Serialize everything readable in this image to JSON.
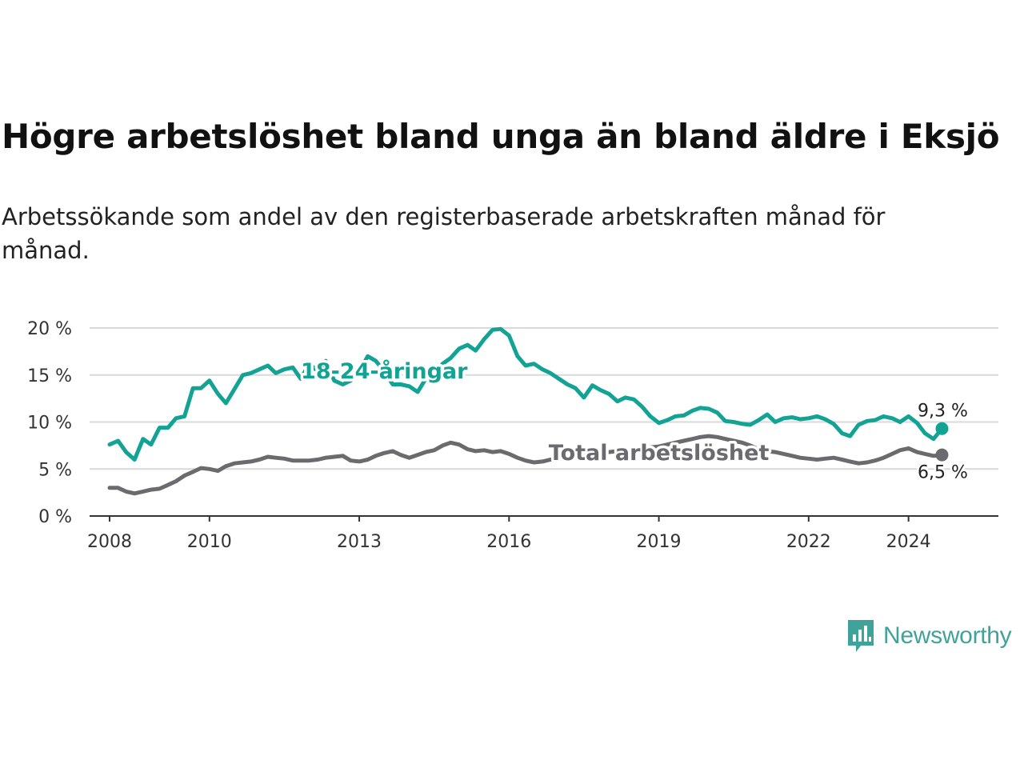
{
  "title": "Högre arbetslöshet bland unga än bland äldre i Eksjö",
  "subtitle": "Arbetssökande som andel av den registerbaserade arbetskraften månad för månad.",
  "brand": {
    "name": "Newsworthy",
    "icon": "newsworthy-logo-icon",
    "color": "#3fa39a"
  },
  "chart_data": {
    "type": "line",
    "title": "Högre arbetslöshet bland unga än bland äldre i Eksjö",
    "subtitle": "Arbetssökande som andel av den registerbaserade arbetskraften månad för månad.",
    "xlabel": "",
    "ylabel": "",
    "xlim": [
      2007.6,
      2025.8
    ],
    "ylim": [
      0,
      20
    ],
    "grid": true,
    "x_ticks": [
      2008,
      2010,
      2013,
      2016,
      2019,
      2022,
      2024
    ],
    "x_tick_labels": [
      "2008",
      "2010",
      "2013",
      "2016",
      "2019",
      "2022",
      "2024"
    ],
    "y_ticks": [
      0,
      5,
      10,
      15,
      20
    ],
    "y_tick_labels": [
      "0 %",
      "5 %",
      "10 %",
      "15 %",
      "20 %"
    ],
    "series": [
      {
        "name": "18-24-åringar",
        "color": "#12a394",
        "end_label": "9,3 %",
        "points": [
          [
            2008.0,
            7.6
          ],
          [
            2008.17,
            8.0
          ],
          [
            2008.33,
            6.8
          ],
          [
            2008.5,
            6.0
          ],
          [
            2008.67,
            8.2
          ],
          [
            2008.83,
            7.6
          ],
          [
            2009.0,
            9.4
          ],
          [
            2009.17,
            9.4
          ],
          [
            2009.33,
            10.4
          ],
          [
            2009.5,
            10.6
          ],
          [
            2009.67,
            13.6
          ],
          [
            2009.83,
            13.6
          ],
          [
            2010.0,
            14.4
          ],
          [
            2010.17,
            13.0
          ],
          [
            2010.33,
            12.0
          ],
          [
            2010.5,
            13.5
          ],
          [
            2010.67,
            15.0
          ],
          [
            2010.83,
            15.2
          ],
          [
            2011.0,
            15.6
          ],
          [
            2011.17,
            16.0
          ],
          [
            2011.33,
            15.2
          ],
          [
            2011.5,
            15.6
          ],
          [
            2011.67,
            15.8
          ],
          [
            2011.83,
            14.6
          ],
          [
            2012.0,
            16.2
          ],
          [
            2012.17,
            15.4
          ],
          [
            2012.33,
            16.5
          ],
          [
            2012.5,
            14.4
          ],
          [
            2012.67,
            14.0
          ],
          [
            2012.83,
            14.4
          ],
          [
            2013.0,
            15.4
          ],
          [
            2013.17,
            17.0
          ],
          [
            2013.33,
            16.5
          ],
          [
            2013.5,
            15.4
          ],
          [
            2013.67,
            14.0
          ],
          [
            2013.83,
            14.0
          ],
          [
            2014.0,
            13.8
          ],
          [
            2014.17,
            13.2
          ],
          [
            2014.33,
            14.6
          ],
          [
            2014.5,
            15.0
          ],
          [
            2014.67,
            16.2
          ],
          [
            2014.83,
            16.8
          ],
          [
            2015.0,
            17.8
          ],
          [
            2015.17,
            18.2
          ],
          [
            2015.33,
            17.6
          ],
          [
            2015.5,
            18.8
          ],
          [
            2015.67,
            19.8
          ],
          [
            2015.83,
            19.9
          ],
          [
            2016.0,
            19.2
          ],
          [
            2016.17,
            17.0
          ],
          [
            2016.33,
            16.0
          ],
          [
            2016.5,
            16.2
          ],
          [
            2016.67,
            15.6
          ],
          [
            2016.83,
            15.2
          ],
          [
            2017.0,
            14.6
          ],
          [
            2017.17,
            14.0
          ],
          [
            2017.33,
            13.6
          ],
          [
            2017.5,
            12.6
          ],
          [
            2017.67,
            13.9
          ],
          [
            2017.83,
            13.4
          ],
          [
            2018.0,
            13.0
          ],
          [
            2018.17,
            12.2
          ],
          [
            2018.33,
            12.6
          ],
          [
            2018.5,
            12.4
          ],
          [
            2018.67,
            11.6
          ],
          [
            2018.83,
            10.6
          ],
          [
            2019.0,
            9.9
          ],
          [
            2019.17,
            10.2
          ],
          [
            2019.33,
            10.6
          ],
          [
            2019.5,
            10.7
          ],
          [
            2019.67,
            11.2
          ],
          [
            2019.83,
            11.5
          ],
          [
            2020.0,
            11.4
          ],
          [
            2020.17,
            11.0
          ],
          [
            2020.33,
            10.1
          ],
          [
            2020.5,
            10.0
          ],
          [
            2020.67,
            9.8
          ],
          [
            2020.83,
            9.7
          ],
          [
            2021.0,
            10.2
          ],
          [
            2021.17,
            10.8
          ],
          [
            2021.33,
            10.0
          ],
          [
            2021.5,
            10.4
          ],
          [
            2021.67,
            10.5
          ],
          [
            2021.83,
            10.3
          ],
          [
            2022.0,
            10.4
          ],
          [
            2022.17,
            10.6
          ],
          [
            2022.33,
            10.3
          ],
          [
            2022.5,
            9.8
          ],
          [
            2022.67,
            8.8
          ],
          [
            2022.83,
            8.5
          ],
          [
            2023.0,
            9.7
          ],
          [
            2023.17,
            10.1
          ],
          [
            2023.33,
            10.2
          ],
          [
            2023.5,
            10.6
          ],
          [
            2023.67,
            10.4
          ],
          [
            2023.83,
            10.0
          ],
          [
            2024.0,
            10.6
          ],
          [
            2024.17,
            9.9
          ],
          [
            2024.33,
            8.8
          ],
          [
            2024.5,
            8.2
          ],
          [
            2024.67,
            9.3
          ]
        ]
      },
      {
        "name": "Total arbetslöshet",
        "color": "#6b6a6e",
        "end_label": "6,5 %",
        "points": [
          [
            2008.0,
            3.0
          ],
          [
            2008.17,
            3.0
          ],
          [
            2008.33,
            2.6
          ],
          [
            2008.5,
            2.4
          ],
          [
            2008.67,
            2.6
          ],
          [
            2008.83,
            2.8
          ],
          [
            2009.0,
            2.9
          ],
          [
            2009.17,
            3.3
          ],
          [
            2009.33,
            3.7
          ],
          [
            2009.5,
            4.3
          ],
          [
            2009.67,
            4.7
          ],
          [
            2009.83,
            5.1
          ],
          [
            2010.0,
            5.0
          ],
          [
            2010.17,
            4.8
          ],
          [
            2010.33,
            5.3
          ],
          [
            2010.5,
            5.6
          ],
          [
            2010.67,
            5.7
          ],
          [
            2010.83,
            5.8
          ],
          [
            2011.0,
            6.0
          ],
          [
            2011.17,
            6.3
          ],
          [
            2011.33,
            6.2
          ],
          [
            2011.5,
            6.1
          ],
          [
            2011.67,
            5.9
          ],
          [
            2011.83,
            5.9
          ],
          [
            2012.0,
            5.9
          ],
          [
            2012.17,
            6.0
          ],
          [
            2012.33,
            6.2
          ],
          [
            2012.5,
            6.3
          ],
          [
            2012.67,
            6.4
          ],
          [
            2012.83,
            5.9
          ],
          [
            2013.0,
            5.8
          ],
          [
            2013.17,
            6.0
          ],
          [
            2013.33,
            6.4
          ],
          [
            2013.5,
            6.7
          ],
          [
            2013.67,
            6.9
          ],
          [
            2013.83,
            6.5
          ],
          [
            2014.0,
            6.2
          ],
          [
            2014.17,
            6.5
          ],
          [
            2014.33,
            6.8
          ],
          [
            2014.5,
            7.0
          ],
          [
            2014.67,
            7.5
          ],
          [
            2014.83,
            7.8
          ],
          [
            2015.0,
            7.6
          ],
          [
            2015.17,
            7.1
          ],
          [
            2015.33,
            6.9
          ],
          [
            2015.5,
            7.0
          ],
          [
            2015.67,
            6.8
          ],
          [
            2015.83,
            6.9
          ],
          [
            2016.0,
            6.6
          ],
          [
            2016.17,
            6.2
          ],
          [
            2016.33,
            5.9
          ],
          [
            2016.5,
            5.7
          ],
          [
            2016.67,
            5.8
          ],
          [
            2016.83,
            6.0
          ],
          [
            2017.0,
            6.1
          ],
          [
            2017.17,
            6.2
          ],
          [
            2017.33,
            6.4
          ],
          [
            2017.5,
            6.5
          ],
          [
            2017.67,
            6.6
          ],
          [
            2017.83,
            6.7
          ],
          [
            2018.0,
            6.8
          ],
          [
            2018.17,
            6.9
          ],
          [
            2018.33,
            7.0
          ],
          [
            2018.5,
            7.1
          ],
          [
            2018.67,
            7.2
          ],
          [
            2018.83,
            7.3
          ],
          [
            2019.0,
            7.4
          ],
          [
            2019.17,
            7.6
          ],
          [
            2019.33,
            7.8
          ],
          [
            2019.5,
            8.0
          ],
          [
            2019.67,
            8.2
          ],
          [
            2019.83,
            8.4
          ],
          [
            2020.0,
            8.5
          ],
          [
            2020.17,
            8.4
          ],
          [
            2020.33,
            8.2
          ],
          [
            2020.5,
            8.0
          ],
          [
            2020.67,
            7.8
          ],
          [
            2020.83,
            7.5
          ],
          [
            2021.0,
            7.1
          ],
          [
            2021.17,
            6.9
          ],
          [
            2021.33,
            6.8
          ],
          [
            2021.5,
            6.6
          ],
          [
            2021.67,
            6.4
          ],
          [
            2021.83,
            6.2
          ],
          [
            2022.0,
            6.1
          ],
          [
            2022.17,
            6.0
          ],
          [
            2022.33,
            6.1
          ],
          [
            2022.5,
            6.2
          ],
          [
            2022.67,
            6.0
          ],
          [
            2022.83,
            5.8
          ],
          [
            2023.0,
            5.6
          ],
          [
            2023.17,
            5.7
          ],
          [
            2023.33,
            5.9
          ],
          [
            2023.5,
            6.2
          ],
          [
            2023.67,
            6.6
          ],
          [
            2023.83,
            7.0
          ],
          [
            2024.0,
            7.2
          ],
          [
            2024.17,
            6.8
          ],
          [
            2024.33,
            6.6
          ],
          [
            2024.5,
            6.4
          ],
          [
            2024.67,
            6.5
          ]
        ]
      }
    ]
  }
}
